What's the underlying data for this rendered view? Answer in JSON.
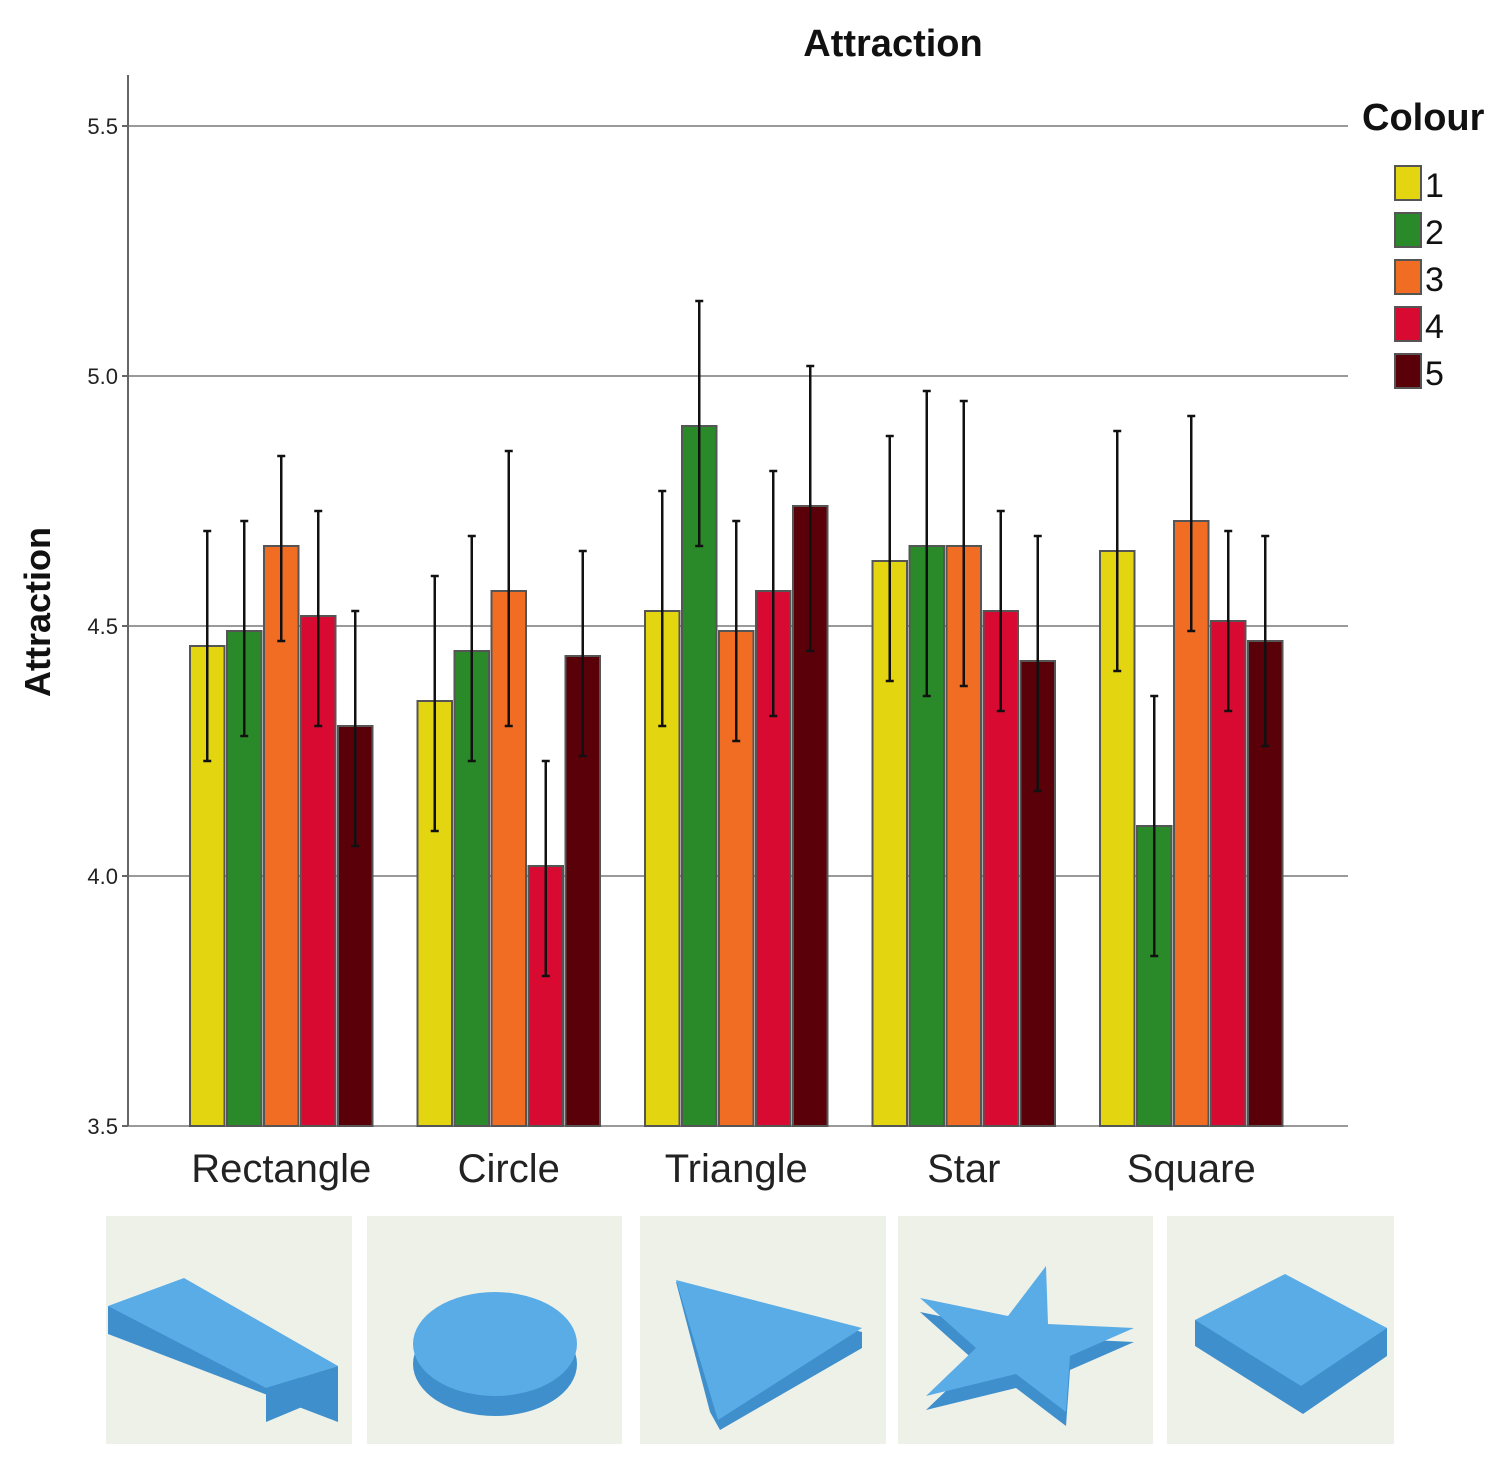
{
  "chart_data": {
    "type": "bar",
    "title": "Attraction",
    "xlabel": "",
    "ylabel": "Attraction",
    "ylim": [
      3.5,
      5.6
    ],
    "yticks": [
      "3.5",
      "4.0",
      "4.5",
      "5.0",
      "5.5"
    ],
    "grid": true,
    "legend_title": "Colour",
    "legend_position": "top-right",
    "categories": [
      "Rectangle",
      "Circle",
      "Triangle",
      "Star",
      "Square"
    ],
    "series": [
      {
        "name": "1",
        "color": "#e3d50f",
        "values": [
          4.46,
          4.35,
          4.53,
          4.63,
          4.65
        ],
        "err_low": [
          4.23,
          4.09,
          4.3,
          4.39,
          4.41
        ],
        "err_high": [
          4.69,
          4.6,
          4.77,
          4.88,
          4.89
        ]
      },
      {
        "name": "2",
        "color": "#2a8a2a",
        "values": [
          4.49,
          4.45,
          4.9,
          4.66,
          4.1
        ],
        "err_low": [
          4.28,
          4.23,
          4.66,
          4.36,
          3.84
        ],
        "err_high": [
          4.71,
          4.68,
          5.15,
          4.97,
          4.36
        ]
      },
      {
        "name": "3",
        "color": "#f26d24",
        "values": [
          4.66,
          4.57,
          4.49,
          4.66,
          4.71
        ],
        "err_low": [
          4.47,
          4.3,
          4.27,
          4.38,
          4.49
        ],
        "err_high": [
          4.84,
          4.85,
          4.71,
          4.95,
          4.92
        ]
      },
      {
        "name": "4",
        "color": "#d90a32",
        "values": [
          4.52,
          4.02,
          4.57,
          4.53,
          4.51
        ],
        "err_low": [
          4.3,
          3.8,
          4.32,
          4.33,
          4.33
        ],
        "err_high": [
          4.73,
          4.23,
          4.81,
          4.73,
          4.69
        ]
      },
      {
        "name": "5",
        "color": "#5a0008",
        "values": [
          4.3,
          4.44,
          4.74,
          4.43,
          4.47
        ],
        "err_low": [
          4.06,
          4.24,
          4.45,
          4.17,
          4.26
        ],
        "err_high": [
          4.53,
          4.65,
          5.02,
          4.68,
          4.68
        ]
      }
    ]
  },
  "shapes": [
    "rectangle",
    "circle",
    "triangle",
    "star",
    "square"
  ]
}
